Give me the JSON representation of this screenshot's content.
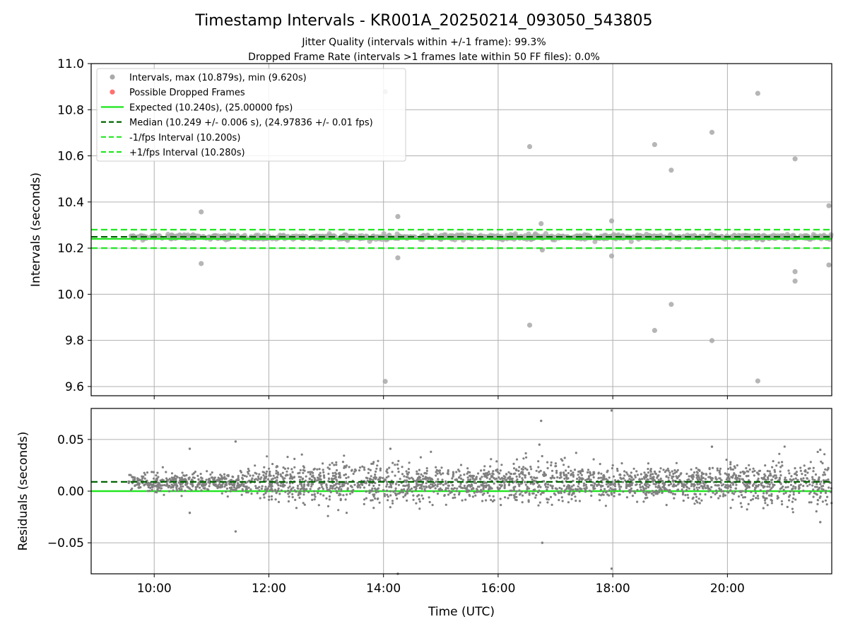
{
  "figure": {
    "title": "Timestamp Intervals - KR001A_20250214_093050_543805",
    "subtitle_1": "Jitter Quality (intervals within +/-1 frame): 99.3%",
    "subtitle_2": "Dropped Frame Rate (intervals >1 frames late within 50 FF files): 0.0%"
  },
  "colors": {
    "points": "#808080",
    "points_light": "#a9a9a9",
    "dropped": "#ff4d4d",
    "expected": "#22e622",
    "median": "#006400",
    "fps_band": "#22e622",
    "grid": "#b0b0b0"
  },
  "chart_data": [
    {
      "type": "scatter",
      "panel": "intervals",
      "xlabel": "",
      "ylabel": "Intervals (seconds)",
      "xlim_hours": [
        8.9,
        21.82
      ],
      "ylim": [
        9.56,
        11.0
      ],
      "yticks": [
        9.6,
        9.8,
        10.0,
        10.2,
        10.4,
        10.6,
        10.8,
        11.0
      ],
      "ytick_labels": [
        "9.6",
        "9.8",
        "10.0",
        "10.2",
        "10.4",
        "10.6",
        "10.8",
        "11.0"
      ],
      "grid": true,
      "legend_position": "top-left",
      "legend": [
        "Intervals, max (10.879s), min (9.620s)",
        "Possible Dropped Frames",
        "Expected (10.240s), (25.00000 fps)",
        "Median (10.249 +/- 0.006 s), (24.97836 +/- 0.01 fps)",
        "-1/fps Interval (10.200s)",
        "+1/fps Interval (10.280s)"
      ],
      "expected": 10.24,
      "median": 10.249,
      "minus_fps_interval": 10.2,
      "plus_fps_interval": 10.28,
      "series_time_range_hours": [
        9.55,
        21.82
      ],
      "series_time_labels": [
        "09:33",
        "21:49"
      ],
      "series_typical": 10.248,
      "series_typical_spread": 0.008,
      "points_count_approx": 4300,
      "outliers": [
        {
          "t": 10.82,
          "y": 10.357
        },
        {
          "t": 10.82,
          "y": 10.133
        },
        {
          "t": 14.03,
          "y": 10.878
        },
        {
          "t": 14.03,
          "y": 9.622
        },
        {
          "t": 14.25,
          "y": 10.337
        },
        {
          "t": 14.25,
          "y": 10.158
        },
        {
          "t": 16.55,
          "y": 10.64
        },
        {
          "t": 16.55,
          "y": 9.866
        },
        {
          "t": 16.75,
          "y": 10.306
        },
        {
          "t": 16.77,
          "y": 10.192
        },
        {
          "t": 17.98,
          "y": 10.318
        },
        {
          "t": 17.98,
          "y": 10.166
        },
        {
          "t": 18.73,
          "y": 10.649
        },
        {
          "t": 18.73,
          "y": 9.843
        },
        {
          "t": 19.02,
          "y": 10.538
        },
        {
          "t": 19.02,
          "y": 9.956
        },
        {
          "t": 19.73,
          "y": 10.702
        },
        {
          "t": 19.73,
          "y": 9.799
        },
        {
          "t": 20.53,
          "y": 10.871
        },
        {
          "t": 20.53,
          "y": 9.624
        },
        {
          "t": 21.18,
          "y": 10.587
        },
        {
          "t": 21.18,
          "y": 10.098
        },
        {
          "t": 21.18,
          "y": 10.057
        },
        {
          "t": 21.77,
          "y": 10.384
        },
        {
          "t": 21.77,
          "y": 10.127
        }
      ]
    },
    {
      "type": "scatter",
      "panel": "residuals",
      "xlabel": "Time (UTC)",
      "ylabel": "Residuals (seconds)",
      "xlim_hours": [
        8.9,
        21.82
      ],
      "ylim": [
        -0.08,
        0.08
      ],
      "yticks": [
        -0.05,
        0.0,
        0.05
      ],
      "ytick_labels": [
        "−0.05",
        "0.00",
        "0.05"
      ],
      "xticks_hours": [
        10,
        12,
        14,
        16,
        18,
        20
      ],
      "xtick_labels": [
        "10:00",
        "12:00",
        "14:00",
        "16:00",
        "18:00",
        "20:00"
      ],
      "grid": true,
      "expected_residual": 0.0,
      "median_residual": 0.009,
      "series_typical": 0.008,
      "series_typical_spread": 0.008,
      "points_count_approx": 2600,
      "outliers": [
        {
          "t": 10.62,
          "y": 0.041
        },
        {
          "t": 10.62,
          "y": -0.021
        },
        {
          "t": 11.42,
          "y": 0.048
        },
        {
          "t": 11.42,
          "y": -0.039
        },
        {
          "t": 14.12,
          "y": 0.041
        },
        {
          "t": 14.25,
          "y": -0.08
        },
        {
          "t": 16.75,
          "y": 0.068
        },
        {
          "t": 16.72,
          "y": 0.045
        },
        {
          "t": 16.77,
          "y": -0.05
        },
        {
          "t": 17.98,
          "y": 0.078
        },
        {
          "t": 17.98,
          "y": -0.075
        },
        {
          "t": 19.73,
          "y": 0.043
        },
        {
          "t": 21.62,
          "y": 0.04
        },
        {
          "t": 21.62,
          "y": -0.03
        }
      ]
    }
  ]
}
